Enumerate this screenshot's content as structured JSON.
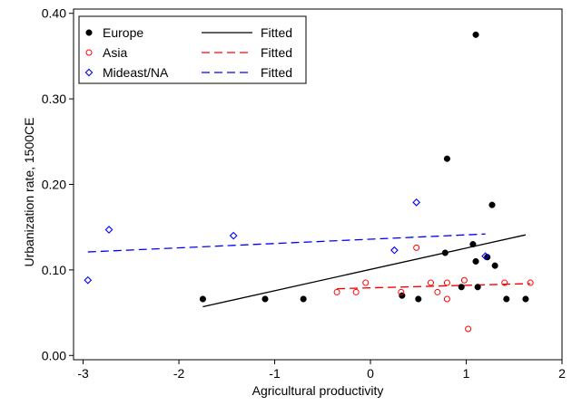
{
  "chart_data": {
    "type": "scatter",
    "xlabel": "Agricultural productivity",
    "ylabel": "Urbanization rate, 1500CE",
    "xlim": [
      -3.1,
      2.0
    ],
    "ylim": [
      -0.005,
      0.405
    ],
    "xticks": [
      -3,
      -2,
      -1,
      0,
      1,
      2
    ],
    "xtick_labels": [
      "-3",
      "-2",
      "-1",
      "0",
      "1",
      "2"
    ],
    "yticks": [
      0.0,
      0.1,
      0.2,
      0.3,
      0.4
    ],
    "ytick_labels": [
      "0.00",
      "0.10",
      "0.20",
      "0.30",
      "0.40"
    ],
    "grid": false,
    "legend_position": "top-left",
    "series": [
      {
        "name": "Europe",
        "kind": "points",
        "marker": "filled-circle",
        "color": "#000000",
        "points": [
          {
            "x": -1.75,
            "y": 0.066
          },
          {
            "x": -1.1,
            "y": 0.066
          },
          {
            "x": -0.7,
            "y": 0.066
          },
          {
            "x": 0.33,
            "y": 0.07
          },
          {
            "x": 0.5,
            "y": 0.066
          },
          {
            "x": 0.78,
            "y": 0.12
          },
          {
            "x": 0.8,
            "y": 0.23
          },
          {
            "x": 0.95,
            "y": 0.08
          },
          {
            "x": 1.07,
            "y": 0.13
          },
          {
            "x": 1.1,
            "y": 0.375
          },
          {
            "x": 1.1,
            "y": 0.11
          },
          {
            "x": 1.12,
            "y": 0.08
          },
          {
            "x": 1.22,
            "y": 0.115
          },
          {
            "x": 1.27,
            "y": 0.176
          },
          {
            "x": 1.3,
            "y": 0.105
          },
          {
            "x": 1.42,
            "y": 0.066
          },
          {
            "x": 1.62,
            "y": 0.066
          }
        ]
      },
      {
        "name": "Fitted",
        "kind": "line",
        "style": "solid",
        "color": "#000000",
        "points": [
          {
            "x": -1.75,
            "y": 0.057
          },
          {
            "x": 1.62,
            "y": 0.141
          }
        ]
      },
      {
        "name": "Asia",
        "kind": "points",
        "marker": "hollow-circle",
        "color": "#ff0000",
        "points": [
          {
            "x": -0.35,
            "y": 0.074
          },
          {
            "x": -0.15,
            "y": 0.074
          },
          {
            "x": -0.05,
            "y": 0.085
          },
          {
            "x": 0.32,
            "y": 0.074
          },
          {
            "x": 0.48,
            "y": 0.126
          },
          {
            "x": 0.63,
            "y": 0.085
          },
          {
            "x": 0.7,
            "y": 0.074
          },
          {
            "x": 0.8,
            "y": 0.085
          },
          {
            "x": 0.8,
            "y": 0.066
          },
          {
            "x": 0.98,
            "y": 0.088
          },
          {
            "x": 1.02,
            "y": 0.031
          },
          {
            "x": 1.4,
            "y": 0.085
          },
          {
            "x": 1.67,
            "y": 0.085
          }
        ]
      },
      {
        "name": "Fitted",
        "kind": "line",
        "style": "dashed",
        "color": "#ff0000",
        "points": [
          {
            "x": -0.35,
            "y": 0.078
          },
          {
            "x": 1.67,
            "y": 0.084
          }
        ]
      },
      {
        "name": "Mideast/NA",
        "kind": "points",
        "marker": "hollow-diamond",
        "color": "#0000ff",
        "points": [
          {
            "x": -2.95,
            "y": 0.088
          },
          {
            "x": -2.73,
            "y": 0.147
          },
          {
            "x": -1.43,
            "y": 0.14
          },
          {
            "x": 0.25,
            "y": 0.123
          },
          {
            "x": 0.48,
            "y": 0.179
          },
          {
            "x": 1.2,
            "y": 0.116
          }
        ]
      },
      {
        "name": "Fitted",
        "kind": "line",
        "style": "dashed",
        "color": "#0000ff",
        "points": [
          {
            "x": -2.95,
            "y": 0.121
          },
          {
            "x": 1.2,
            "y": 0.142
          }
        ]
      }
    ],
    "legend": [
      {
        "label": "Europe",
        "symbol": "filled-circle",
        "color": "#000000"
      },
      {
        "label": "Fitted",
        "symbol": "solid-line",
        "color": "#000000"
      },
      {
        "label": "Asia",
        "symbol": "hollow-circle",
        "color": "#ff0000"
      },
      {
        "label": "Fitted",
        "symbol": "dashed-line",
        "color": "#ff0000"
      },
      {
        "label": "Mideast/NA",
        "symbol": "hollow-diamond",
        "color": "#0000ff"
      },
      {
        "label": "Fitted",
        "symbol": "dashed-line",
        "color": "#0000ff"
      }
    ]
  }
}
